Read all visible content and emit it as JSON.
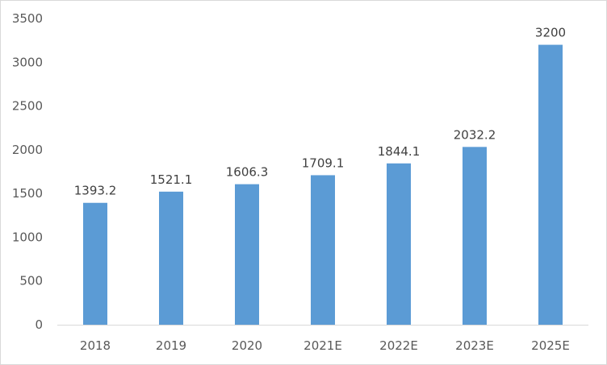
{
  "chart_data": {
    "type": "bar",
    "title": "",
    "xlabel": "",
    "ylabel": "",
    "categories": [
      "2018",
      "2019",
      "2020",
      "2021E",
      "2022E",
      "2023E",
      "2025E"
    ],
    "values": [
      1393.2,
      1521.1,
      1606.3,
      1709.1,
      1844.1,
      2032.2,
      3200
    ],
    "data_labels": [
      "1393.2",
      "1521.1",
      "1606.3",
      "1709.1",
      "1844.1",
      "2032.2",
      "3200"
    ],
    "ylim": [
      0,
      3500
    ],
    "yticks": [
      "0",
      "500",
      "1000",
      "1500",
      "2000",
      "2500",
      "3000",
      "3500"
    ],
    "grid": false,
    "legend": "none",
    "bar_color": "#5b9bd5",
    "axis_color": "#d9d9d9"
  }
}
